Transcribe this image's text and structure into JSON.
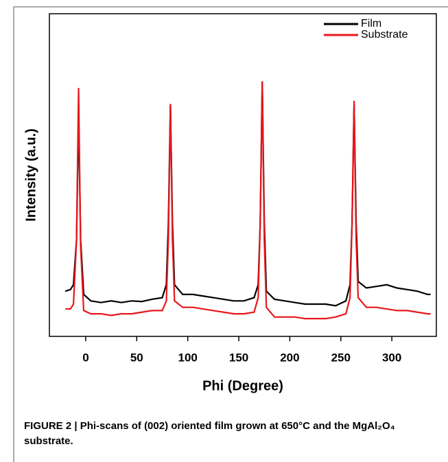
{
  "chart_data": {
    "type": "line",
    "x_label": "Phi (Degree)",
    "y_label": "Intensity (a.u.)",
    "caption": "FIGURE 2 | Phi-scans of (002) oriented film grown at 650°C and the MgAl₂O₄ substrate.",
    "x": [
      -20,
      -15,
      -12,
      -9,
      -7,
      -5,
      -2,
      5,
      15,
      25,
      35,
      45,
      55,
      65,
      75,
      79,
      81,
      83,
      85,
      87,
      95,
      105,
      115,
      125,
      135,
      145,
      155,
      165,
      169,
      171,
      173,
      175,
      177,
      185,
      195,
      205,
      215,
      225,
      235,
      245,
      255,
      259,
      261,
      263,
      265,
      267,
      275,
      285,
      295,
      305,
      315,
      325,
      335,
      338
    ],
    "series": [
      {
        "name": "Film",
        "color": "#000000",
        "values": [
          14,
          14.5,
          16,
          30,
          69,
          30,
          13,
          11,
          10.5,
          11,
          10.5,
          11,
          10.8,
          11.5,
          12,
          16,
          35,
          72,
          35,
          16,
          13,
          13,
          12.5,
          12,
          11.5,
          11,
          11,
          12,
          16,
          35,
          79,
          35,
          14,
          11.5,
          11,
          10.5,
          10,
          10,
          10,
          9.5,
          11,
          16,
          35,
          72,
          35,
          17,
          15,
          15.5,
          16,
          15,
          14.5,
          14,
          13,
          13
        ]
      },
      {
        "name": "Substrate",
        "color": "#e8161b",
        "values": [
          8.5,
          8.5,
          10,
          30,
          77,
          28,
          8,
          7,
          7,
          6.5,
          7,
          7,
          7.5,
          8,
          8,
          11,
          30,
          72,
          30,
          11,
          9,
          9,
          8.5,
          8,
          7.5,
          7,
          7,
          7.5,
          12,
          35,
          79,
          30,
          9,
          6,
          6,
          6,
          5.5,
          5.5,
          5.5,
          6,
          7,
          12,
          35,
          73,
          30,
          12,
          9,
          9,
          8.5,
          8,
          8,
          7.5,
          7,
          7
        ]
      }
    ],
    "xlim": [
      -35.6,
      343.6
    ],
    "xticks": [
      0,
      50,
      100,
      150,
      200,
      250,
      300
    ],
    "ylim": [
      0,
      100
    ],
    "legend": "upper-right"
  }
}
